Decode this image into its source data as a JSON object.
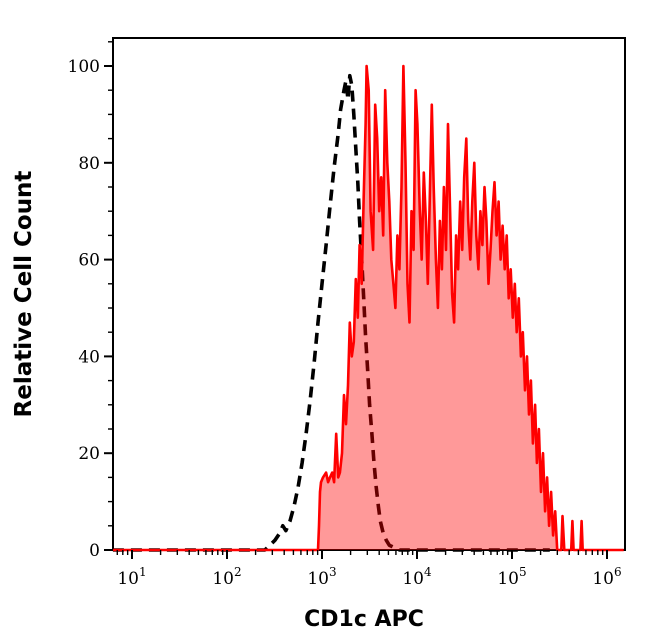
{
  "figure": {
    "x_axis_title": "CD1c APC",
    "y_axis_title": "Relative Cell Count"
  },
  "chart_data": {
    "type": "line",
    "subtype": "flow-cytometry-histogram-overlay",
    "title": "",
    "xlabel": "CD1c APC",
    "ylabel": "Relative Cell Count",
    "xscale": "log10",
    "xlim": [
      6.3,
      1510000
    ],
    "ylim": [
      0,
      105.8
    ],
    "grid": false,
    "legend": "none",
    "x_major_tick_exponents": [
      1,
      2,
      3,
      4,
      5,
      6
    ],
    "y_major_ticks": [
      0,
      20,
      40,
      60,
      80,
      100
    ],
    "y_minor_tick_step": 5,
    "colors": {
      "axis": "#000000",
      "dashed_series": "#000000",
      "red_series": "#ff0000",
      "red_fill_rendered": "#ff9999"
    },
    "series": [
      {
        "name": "control-dashed-black",
        "line_style": "dashed",
        "color": "#000000",
        "fill": "none",
        "peak": {
          "x": 1900,
          "y": 98
        },
        "points": [
          [
            6.3,
            0
          ],
          [
            250,
            0
          ],
          [
            283,
            1
          ],
          [
            319,
            2
          ],
          [
            360,
            3.5
          ],
          [
            387,
            5
          ],
          [
            417,
            4
          ],
          [
            460,
            6
          ],
          [
            507,
            9
          ],
          [
            560,
            13
          ],
          [
            618,
            18
          ],
          [
            681,
            24
          ],
          [
            751,
            31
          ],
          [
            829,
            39
          ],
          [
            908,
            47
          ],
          [
            1000,
            55
          ],
          [
            1105,
            63
          ],
          [
            1215,
            71
          ],
          [
            1340,
            79
          ],
          [
            1480,
            86
          ],
          [
            1570,
            91
          ],
          [
            1705,
            95
          ],
          [
            1790,
            97
          ],
          [
            1880,
            93
          ],
          [
            1960,
            98
          ],
          [
            2060,
            96
          ],
          [
            2160,
            90
          ],
          [
            2270,
            83
          ],
          [
            2380,
            76
          ],
          [
            2490,
            68
          ],
          [
            2620,
            60
          ],
          [
            2750,
            52
          ],
          [
            2880,
            44
          ],
          [
            3030,
            37
          ],
          [
            3170,
            30
          ],
          [
            3350,
            24
          ],
          [
            3530,
            18
          ],
          [
            3720,
            13
          ],
          [
            3920,
            9
          ],
          [
            4110,
            6
          ],
          [
            4410,
            3.5
          ],
          [
            4750,
            2
          ],
          [
            5110,
            1
          ],
          [
            5780,
            0.5
          ],
          [
            6540,
            0
          ],
          [
            250000,
            0
          ]
        ]
      },
      {
        "name": "cd1c-apc-stained-red-filled",
        "line_style": "solid",
        "color": "#ff0000",
        "fill_color": "#ff0000",
        "fill_opacity": 0.4,
        "peak": {
          "x": 2950,
          "y": 100
        },
        "points": [
          [
            6.3,
            0
          ],
          [
            850,
            0
          ],
          [
            908,
            0
          ],
          [
            930,
            5
          ],
          [
            953,
            12
          ],
          [
            977,
            14
          ],
          [
            1025,
            15
          ],
          [
            1105,
            16
          ],
          [
            1160,
            14
          ],
          [
            1215,
            15
          ],
          [
            1280,
            16
          ],
          [
            1340,
            14
          ],
          [
            1410,
            24
          ],
          [
            1480,
            15
          ],
          [
            1545,
            16
          ],
          [
            1625,
            20
          ],
          [
            1705,
            32
          ],
          [
            1790,
            26
          ],
          [
            1880,
            34
          ],
          [
            1960,
            47
          ],
          [
            2060,
            40
          ],
          [
            2160,
            43
          ],
          [
            2270,
            56
          ],
          [
            2380,
            48
          ],
          [
            2490,
            63
          ],
          [
            2620,
            55
          ],
          [
            2750,
            73
          ],
          [
            2880,
            88
          ],
          [
            2950,
            100
          ],
          [
            3100,
            95
          ],
          [
            3250,
            70
          ],
          [
            3450,
            62
          ],
          [
            3630,
            92
          ],
          [
            3810,
            85
          ],
          [
            4000,
            70
          ],
          [
            4200,
            77
          ],
          [
            4410,
            65
          ],
          [
            4630,
            95
          ],
          [
            4870,
            80
          ],
          [
            5110,
            72
          ],
          [
            5370,
            60
          ],
          [
            5640,
            55
          ],
          [
            5920,
            50
          ],
          [
            6220,
            65
          ],
          [
            6530,
            58
          ],
          [
            6860,
            75
          ],
          [
            7200,
            100
          ],
          [
            7560,
            80
          ],
          [
            7940,
            55
          ],
          [
            8340,
            47
          ],
          [
            8760,
            70
          ],
          [
            9200,
            62
          ],
          [
            9660,
            95
          ],
          [
            10100,
            88
          ],
          [
            10700,
            70
          ],
          [
            11200,
            60
          ],
          [
            11800,
            78
          ],
          [
            12400,
            68
          ],
          [
            13000,
            55
          ],
          [
            13600,
            72
          ],
          [
            14300,
            92
          ],
          [
            15000,
            75
          ],
          [
            15800,
            60
          ],
          [
            16600,
            50
          ],
          [
            17400,
            68
          ],
          [
            18300,
            58
          ],
          [
            19200,
            75
          ],
          [
            20200,
            62
          ],
          [
            21200,
            88
          ],
          [
            22300,
            70
          ],
          [
            23400,
            53
          ],
          [
            24600,
            47
          ],
          [
            25800,
            65
          ],
          [
            27100,
            58
          ],
          [
            28500,
            72
          ],
          [
            29900,
            62
          ],
          [
            31400,
            77
          ],
          [
            33000,
            85
          ],
          [
            34600,
            68
          ],
          [
            36400,
            60
          ],
          [
            38200,
            72
          ],
          [
            40100,
            80
          ],
          [
            42100,
            65
          ],
          [
            44300,
            58
          ],
          [
            46500,
            70
          ],
          [
            48800,
            63
          ],
          [
            51300,
            75
          ],
          [
            53800,
            68
          ],
          [
            56600,
            55
          ],
          [
            59400,
            62
          ],
          [
            62400,
            70
          ],
          [
            65500,
            76
          ],
          [
            68800,
            65
          ],
          [
            72300,
            72
          ],
          [
            75900,
            60
          ],
          [
            79700,
            67
          ],
          [
            83700,
            58
          ],
          [
            87900,
            65
          ],
          [
            92300,
            52
          ],
          [
            97000,
            58
          ],
          [
            102000,
            48
          ],
          [
            107000,
            55
          ],
          [
            112000,
            45
          ],
          [
            118000,
            52
          ],
          [
            124000,
            40
          ],
          [
            130000,
            45
          ],
          [
            137000,
            33
          ],
          [
            144000,
            40
          ],
          [
            151000,
            28
          ],
          [
            158000,
            35
          ],
          [
            166000,
            22
          ],
          [
            175000,
            30
          ],
          [
            183000,
            18
          ],
          [
            192000,
            25
          ],
          [
            202000,
            12
          ],
          [
            212000,
            20
          ],
          [
            223000,
            8
          ],
          [
            234000,
            15
          ],
          [
            246000,
            5
          ],
          [
            258000,
            12
          ],
          [
            271000,
            3
          ],
          [
            285000,
            8
          ],
          [
            299000,
            0
          ],
          [
            330000,
            0
          ],
          [
            340000,
            7
          ],
          [
            355000,
            0
          ],
          [
            420000,
            0
          ],
          [
            432000,
            6
          ],
          [
            445000,
            0
          ],
          [
            525000,
            0
          ],
          [
            540000,
            6
          ],
          [
            555000,
            0
          ],
          [
            1500000,
            0
          ]
        ]
      }
    ]
  }
}
